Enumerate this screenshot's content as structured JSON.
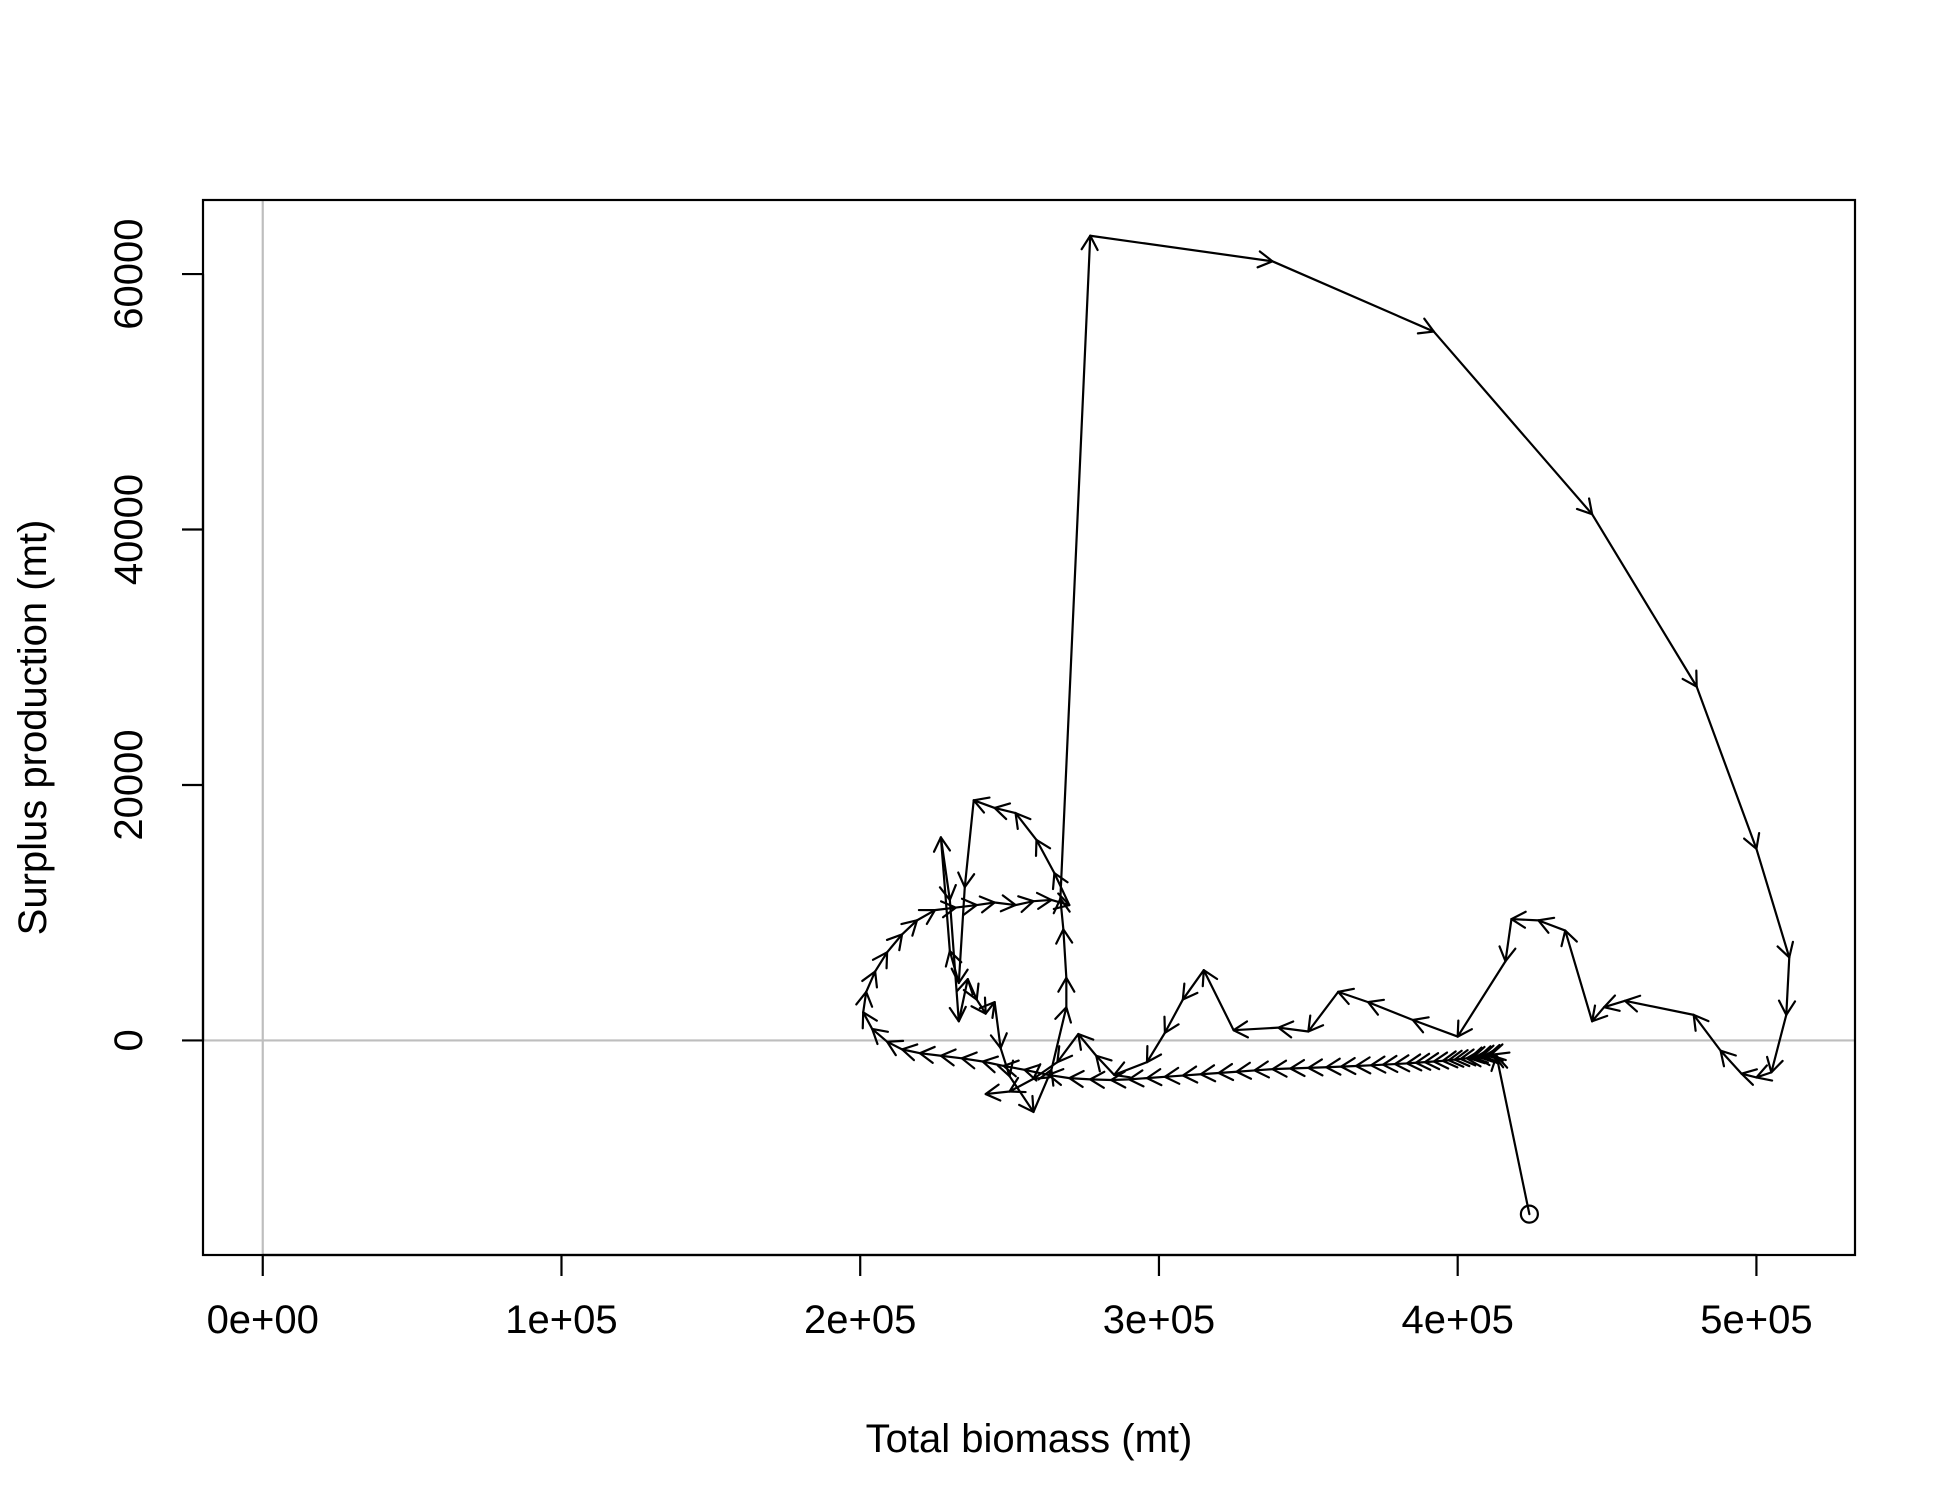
{
  "chart_data": {
    "type": "line",
    "title": "",
    "xlabel": "Total biomass (mt)",
    "ylabel": "Surplus production (mt)",
    "xlim": [
      -20000,
      533000
    ],
    "ylim": [
      -16800,
      65800
    ],
    "x_ticks": [
      {
        "value": 0,
        "label": "0e+00"
      },
      {
        "value": 100000,
        "label": "1e+05"
      },
      {
        "value": 200000,
        "label": "2e+05"
      },
      {
        "value": 300000,
        "label": "3e+05"
      },
      {
        "value": 400000,
        "label": "4e+05"
      },
      {
        "value": 500000,
        "label": "5e+05"
      }
    ],
    "y_ticks": [
      {
        "value": 0,
        "label": "0"
      },
      {
        "value": 20000,
        "label": "20000"
      },
      {
        "value": 40000,
        "label": "40000"
      },
      {
        "value": 60000,
        "label": "60000"
      }
    ],
    "reference_lines": {
      "x": 0,
      "y": 0,
      "color": "#bebebe"
    },
    "start_marker": "open-circle",
    "line_color": "#000000",
    "series": [
      {
        "values": [
          [
            424000,
            -13600
          ],
          [
            413000,
            -1200
          ],
          [
            412000,
            -1100
          ],
          [
            411000,
            -1150
          ],
          [
            410000,
            -1200
          ],
          [
            409000,
            -1200
          ],
          [
            408000,
            -1250
          ],
          [
            407000,
            -1300
          ],
          [
            406000,
            -1300
          ],
          [
            405000,
            -1350
          ],
          [
            404000,
            -1400
          ],
          [
            403000,
            -1400
          ],
          [
            401000,
            -1450
          ],
          [
            399000,
            -1500
          ],
          [
            397000,
            -1550
          ],
          [
            395000,
            -1600
          ],
          [
            392000,
            -1650
          ],
          [
            389000,
            -1700
          ],
          [
            386000,
            -1750
          ],
          [
            383000,
            -1800
          ],
          [
            379000,
            -1850
          ],
          [
            375000,
            -1900
          ],
          [
            371000,
            -1950
          ],
          [
            366000,
            -2000
          ],
          [
            361000,
            -2050
          ],
          [
            356000,
            -2100
          ],
          [
            350000,
            -2150
          ],
          [
            344000,
            -2200
          ],
          [
            338000,
            -2250
          ],
          [
            332000,
            -2350
          ],
          [
            326000,
            -2450
          ],
          [
            320000,
            -2550
          ],
          [
            314000,
            -2650
          ],
          [
            308000,
            -2750
          ],
          [
            302000,
            -2850
          ],
          [
            296000,
            -2950
          ],
          [
            290000,
            -3050
          ],
          [
            284000,
            -3100
          ],
          [
            277000,
            -3050
          ],
          [
            270000,
            -2950
          ],
          [
            263000,
            -2700
          ],
          [
            255000,
            -2300
          ],
          [
            248000,
            -2000
          ],
          [
            241000,
            -1650
          ],
          [
            234000,
            -1400
          ],
          [
            227000,
            -1200
          ],
          [
            220000,
            -1000
          ],
          [
            214000,
            -700
          ],
          [
            209000,
            -100
          ],
          [
            204000,
            900
          ],
          [
            201000,
            2200
          ],
          [
            202000,
            3800
          ],
          [
            205000,
            5400
          ],
          [
            209000,
            6900
          ],
          [
            214000,
            8300
          ],
          [
            219000,
            9400
          ],
          [
            225000,
            10200
          ],
          [
            232000,
            10400
          ],
          [
            239000,
            10600
          ],
          [
            245000,
            10800
          ],
          [
            252000,
            10600
          ],
          [
            258000,
            10900
          ],
          [
            264000,
            11000
          ],
          [
            270000,
            10600
          ],
          [
            265000,
            13100
          ],
          [
            259000,
            15700
          ],
          [
            252000,
            17800
          ],
          [
            245000,
            18200
          ],
          [
            238000,
            18800
          ],
          [
            235000,
            12000
          ],
          [
            233000,
            4500
          ],
          [
            230000,
            7000
          ],
          [
            227000,
            15900
          ],
          [
            230000,
            11000
          ],
          [
            233000,
            1500
          ],
          [
            236000,
            4800
          ],
          [
            239000,
            3200
          ],
          [
            242000,
            2100
          ],
          [
            245000,
            3000
          ],
          [
            247000,
            -600
          ],
          [
            250000,
            -2800
          ],
          [
            258000,
            -5600
          ],
          [
            264000,
            -2300
          ],
          [
            269000,
            2600
          ],
          [
            269000,
            4900
          ],
          [
            268000,
            8700
          ],
          [
            267000,
            11100
          ],
          [
            277000,
            63000
          ],
          [
            338000,
            61000
          ],
          [
            392000,
            55500
          ],
          [
            445000,
            41200
          ],
          [
            480000,
            27700
          ],
          [
            500000,
            15000
          ],
          [
            511000,
            6500
          ],
          [
            510000,
            2000
          ],
          [
            505000,
            -2500
          ],
          [
            500000,
            -2900
          ],
          [
            495000,
            -2600
          ],
          [
            488000,
            -800
          ],
          [
            479000,
            2000
          ],
          [
            456000,
            3100
          ],
          [
            449000,
            2600
          ],
          [
            445000,
            1500
          ],
          [
            436000,
            8600
          ],
          [
            427000,
            9400
          ],
          [
            418000,
            9500
          ],
          [
            416000,
            6200
          ],
          [
            400000,
            300
          ],
          [
            385000,
            1600
          ],
          [
            370000,
            3000
          ],
          [
            360000,
            3800
          ],
          [
            350000,
            700
          ],
          [
            340000,
            1000
          ],
          [
            325000,
            800
          ],
          [
            315000,
            5500
          ],
          [
            308000,
            3200
          ],
          [
            302000,
            600
          ],
          [
            296000,
            -1700
          ],
          [
            285000,
            -2700
          ],
          [
            279000,
            -1200
          ],
          [
            273000,
            500
          ],
          [
            266000,
            -1700
          ],
          [
            258000,
            -3000
          ],
          [
            250000,
            -4000
          ],
          [
            242000,
            -4200
          ]
        ]
      }
    ]
  }
}
